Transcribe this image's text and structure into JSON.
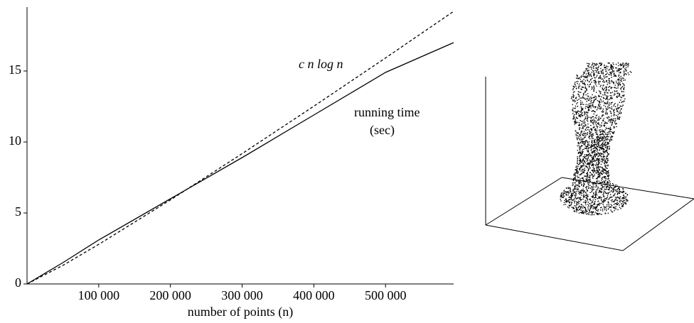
{
  "chart_data": {
    "type": "line",
    "xlabel": "number of points (n)",
    "x": [
      0,
      50000,
      100000,
      200000,
      300000,
      400000,
      500000,
      595000
    ],
    "series": [
      {
        "name": "running time",
        "color": "#000000",
        "dash": false,
        "values": [
          0,
          1.5,
          3.1,
          6.0,
          8.9,
          11.9,
          14.9,
          17.0
        ]
      },
      {
        "name": "c n log n",
        "color": "#000000",
        "dash": true,
        "values": [
          0,
          1.31,
          2.79,
          5.92,
          9.18,
          12.52,
          15.92,
          19.2
        ]
      }
    ],
    "annotations": [
      "(sec)"
    ],
    "xlim": [
      0,
      595000
    ],
    "ylim": [
      0,
      19.5
    ],
    "xticks": [
      {
        "value": 100000,
        "label": "100 000"
      },
      {
        "value": 200000,
        "label": "200 000"
      },
      {
        "value": 300000,
        "label": "300 000"
      },
      {
        "value": 400000,
        "label": "400 000"
      },
      {
        "value": 500000,
        "label": "500 000"
      }
    ],
    "yticks": [
      0,
      5,
      10,
      15
    ],
    "grid": false
  }
}
